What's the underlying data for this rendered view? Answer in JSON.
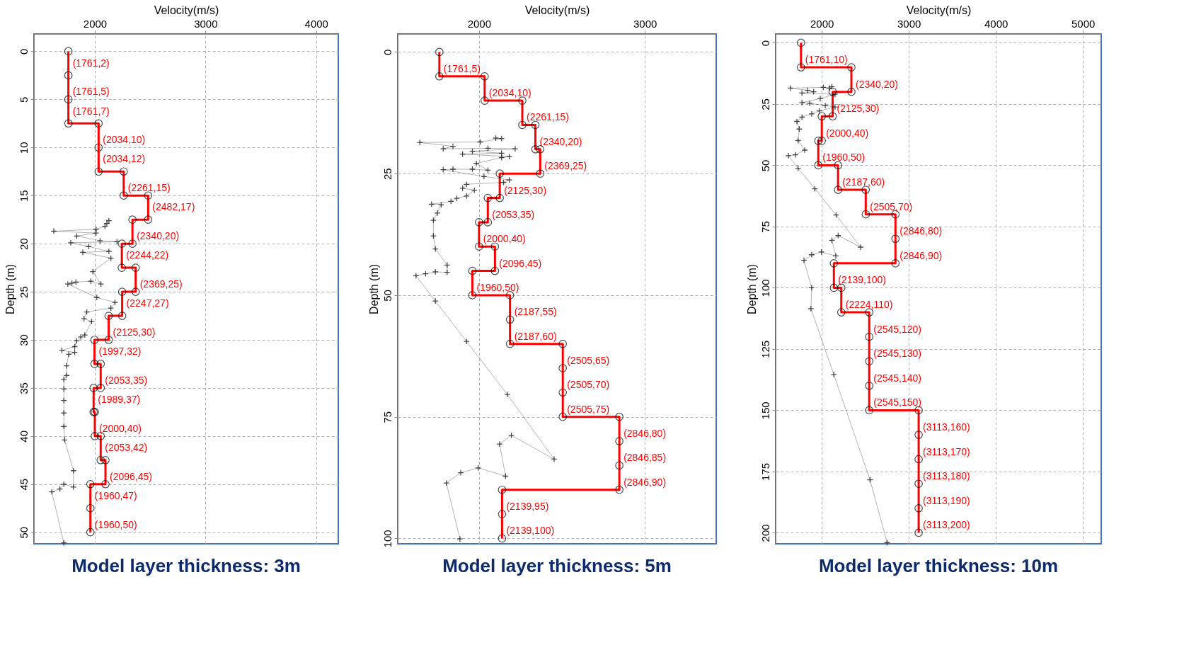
{
  "chart_data": [
    {
      "type": "line",
      "title": "Model layer thickness: 3m",
      "xlabel": "Velocity(m/s)",
      "ylabel": "Depth (m)",
      "xlim": [
        1450,
        4200
      ],
      "xticks": [
        2000,
        3000,
        4000
      ],
      "ylim": [
        51.2,
        -1.8
      ],
      "yticks": [
        0,
        5,
        10,
        15,
        20,
        25,
        30,
        35,
        40,
        45,
        50
      ],
      "grid": true,
      "series": [
        {
          "color": "#ff0000",
          "marker": "circle",
          "x": [
            1761,
            1761,
            1761,
            1761,
            2034,
            2034,
            2034,
            2261,
            2261,
            2482,
            2482,
            2340,
            2340,
            2244,
            2244,
            2369,
            2369,
            2247,
            2247,
            2125,
            2125,
            1997,
            1997,
            2053,
            2053,
            1989,
            1989,
            2000,
            2000,
            2053,
            2053,
            2096,
            2096,
            1960,
            1960,
            1960
          ],
          "values": [
            0,
            2.5,
            5,
            7.5,
            7.5,
            10,
            12.5,
            12.5,
            15,
            15,
            17.5,
            17.5,
            20,
            20,
            22.5,
            22.5,
            25,
            25,
            27.5,
            27.5,
            30,
            30,
            32.5,
            32.5,
            35,
            35,
            37.5,
            37.5,
            40,
            40,
            42.5,
            42.5,
            45,
            45,
            47.5,
            50
          ]
        },
        {
          "color": "#000000",
          "marker": "cross",
          "x": [
            2127,
            2109,
            2091,
            2011,
            1629,
            2011,
            1836,
            2047,
            2200,
            1782,
            1945,
            2127,
            1891,
            2145,
            1982,
            2055,
            1964,
            1829,
            1793,
            1756,
            2018,
            2182,
            2145,
            1927,
            1902,
            1971,
            1909,
            1873,
            1836,
            1818,
            1702,
            1818,
            1764,
            1745,
            1745,
            1720,
            1720,
            1720,
            1720,
            1720,
            1727,
            1807,
            1807,
            1720,
            1684,
            1611,
            1720
          ],
          "values": [
            17.6,
            17.9,
            18.2,
            18.5,
            18.7,
            18.9,
            19.2,
            19.7,
            19.8,
            19.9,
            20.3,
            20.8,
            20.9,
            21.5,
            22.9,
            24.2,
            23.9,
            24.0,
            24.1,
            24.2,
            25.6,
            26.1,
            26.7,
            27.1,
            27.8,
            28.1,
            29.5,
            29.7,
            30.1,
            30.7,
            31.1,
            31.3,
            31.5,
            32.7,
            33.7,
            34.1,
            35.1,
            36.3,
            37.6,
            39.0,
            40.4,
            43.6,
            45.3,
            45.0,
            45.5,
            45.8,
            51.1
          ]
        }
      ],
      "annotations": [
        {
          "text": "(1761,2)",
          "x": 1761,
          "y": 2
        },
        {
          "text": "(1761,5)",
          "x": 1761,
          "y": 5
        },
        {
          "text": "(1761,7)",
          "x": 1761,
          "y": 7
        },
        {
          "text": "(2034,10)",
          "x": 2034,
          "y": 10
        },
        {
          "text": "(2034,12)",
          "x": 2034,
          "y": 12
        },
        {
          "text": "(2261,15)",
          "x": 2261,
          "y": 15
        },
        {
          "text": "(2482,17)",
          "x": 2482,
          "y": 17
        },
        {
          "text": "(2340,20)",
          "x": 2340,
          "y": 20
        },
        {
          "text": "(2244,22)",
          "x": 2244,
          "y": 22
        },
        {
          "text": "(2369,25)",
          "x": 2369,
          "y": 25
        },
        {
          "text": "(2247,27)",
          "x": 2247,
          "y": 27
        },
        {
          "text": "(2125,30)",
          "x": 2125,
          "y": 30
        },
        {
          "text": "(1997,32)",
          "x": 1997,
          "y": 32
        },
        {
          "text": "(2053,35)",
          "x": 2053,
          "y": 35
        },
        {
          "text": "(1989,37)",
          "x": 1989,
          "y": 37
        },
        {
          "text": "(2000,40)",
          "x": 2000,
          "y": 40
        },
        {
          "text": "(2053,42)",
          "x": 2053,
          "y": 42
        },
        {
          "text": "(2096,45)",
          "x": 2096,
          "y": 45
        },
        {
          "text": "(1960,47)",
          "x": 1960,
          "y": 47
        },
        {
          "text": "(1960,50)",
          "x": 1960,
          "y": 50
        }
      ]
    },
    {
      "type": "line",
      "title": "Model layer thickness: 5m",
      "xlabel": "Velocity(m/s)",
      "ylabel": "Depth (m)",
      "xlim": [
        1510,
        3430
      ],
      "xticks": [
        2000,
        3000
      ],
      "ylim": [
        101.1,
        -3.7
      ],
      "yticks": [
        0,
        25,
        50,
        75,
        100
      ],
      "grid": true,
      "series": [
        {
          "color": "#ff0000",
          "marker": "circle",
          "x": [
            1761,
            1761,
            2034,
            2034,
            2261,
            2261,
            2340,
            2340,
            2369,
            2369,
            2125,
            2125,
            2053,
            2053,
            2000,
            2000,
            2096,
            2096,
            1960,
            1960,
            2187,
            2187,
            2187,
            2505,
            2505,
            2505,
            2505,
            2846,
            2846,
            2846,
            2846,
            2139,
            2139,
            2139
          ],
          "values": [
            0,
            5,
            5,
            10,
            10,
            15,
            15,
            20,
            20,
            25,
            25,
            30,
            30,
            35,
            35,
            40,
            40,
            45,
            45,
            50,
            50,
            55,
            60,
            60,
            65,
            70,
            75,
            75,
            80,
            85,
            90,
            90,
            95,
            100
          ]
        },
        {
          "color": "#000000",
          "marker": "cross",
          "x": [
            2101,
            2136,
            2007,
            1643,
            1843,
            1784,
            2054,
            2218,
            1960,
            2136,
            1901,
            2183,
            2136,
            1984,
            2054,
            1960,
            1843,
            1784,
            2030,
            2183,
            2148,
            1925,
            1901,
            1972,
            1925,
            1866,
            1831,
            1714,
            1772,
            1749,
            1725,
            1725,
            1737,
            1808,
            1808,
            1737,
            1678,
            1620,
            1737,
            1925,
            2171,
            2453,
            2195,
            2124,
            2160,
            1995,
            1890,
            1803,
            1885
          ],
          "values": [
            17.7,
            17.8,
            18.5,
            18.6,
            19.4,
            19.9,
            19.8,
            19.9,
            20.4,
            20.8,
            21.0,
            21.5,
            21.7,
            22.9,
            24.3,
            24.1,
            24.1,
            24.2,
            25.6,
            26.3,
            26.8,
            27.2,
            28.0,
            28.4,
            29.6,
            30.1,
            30.7,
            31.3,
            31.4,
            33.1,
            34.6,
            37.8,
            40.5,
            43.8,
            45.3,
            45.2,
            45.6,
            46.0,
            51.2,
            59.5,
            70.4,
            83.7,
            78.8,
            80.6,
            87.2,
            85.5,
            86.5,
            88.6,
            100.1
          ]
        }
      ],
      "annotations": [
        {
          "text": "(1761,5)",
          "x": 1761,
          "y": 5
        },
        {
          "text": "(2034,10)",
          "x": 2034,
          "y": 10
        },
        {
          "text": "(2261,15)",
          "x": 2261,
          "y": 15
        },
        {
          "text": "(2340,20)",
          "x": 2340,
          "y": 20
        },
        {
          "text": "(2369,25)",
          "x": 2369,
          "y": 25
        },
        {
          "text": "(2125,30)",
          "x": 2125,
          "y": 30
        },
        {
          "text": "(2053,35)",
          "x": 2053,
          "y": 35
        },
        {
          "text": "(2000,40)",
          "x": 2000,
          "y": 40
        },
        {
          "text": "(2096,45)",
          "x": 2096,
          "y": 45
        },
        {
          "text": "(1960,50)",
          "x": 1960,
          "y": 50
        },
        {
          "text": "(2187,55)",
          "x": 2187,
          "y": 55
        },
        {
          "text": "(2187,60)",
          "x": 2187,
          "y": 60
        },
        {
          "text": "(2505,65)",
          "x": 2505,
          "y": 65
        },
        {
          "text": "(2505,70)",
          "x": 2505,
          "y": 70
        },
        {
          "text": "(2505,75)",
          "x": 2505,
          "y": 75
        },
        {
          "text": "(2846,80)",
          "x": 2846,
          "y": 80
        },
        {
          "text": "(2846,85)",
          "x": 2846,
          "y": 85
        },
        {
          "text": "(2846,90)",
          "x": 2846,
          "y": 90
        },
        {
          "text": "(2139,95)",
          "x": 2139,
          "y": 95
        },
        {
          "text": "(2139,100)",
          "x": 2139,
          "y": 100
        }
      ]
    },
    {
      "type": "line",
      "title": "Model layer thickness: 10m",
      "xlabel": "Velocity(m/s)",
      "ylabel": "Depth (m)",
      "xlim": [
        1470,
        5210
      ],
      "xticks": [
        2000,
        3000,
        4000,
        5000
      ],
      "ylim": [
        204.5,
        -3.6
      ],
      "yticks": [
        0,
        25,
        50,
        75,
        100,
        125,
        150,
        175,
        200
      ],
      "grid": true,
      "series": [
        {
          "color": "#ff0000",
          "marker": "circle",
          "x": [
            1761,
            1761,
            2340,
            2340,
            2125,
            2125,
            2000,
            2000,
            1960,
            1960,
            2187,
            2187,
            2505,
            2505,
            2846,
            2846,
            2846,
            2139,
            2139,
            2224,
            2224,
            2545,
            2545,
            2545,
            2545,
            2545,
            3113,
            3113,
            3113,
            3113,
            3113,
            3113
          ],
          "values": [
            0,
            10,
            10,
            20,
            20,
            30,
            30,
            40,
            40,
            50,
            50,
            60,
            60,
            70,
            70,
            80,
            90,
            90,
            100,
            100,
            110,
            110,
            120,
            130,
            140,
            150,
            150,
            160,
            170,
            180,
            190,
            200
          ]
        },
        {
          "color": "#000000",
          "marker": "cross",
          "x": [
            2116,
            2085,
            2018,
            1638,
            1839,
            1906,
            1772,
            2152,
            1982,
            1772,
            1862,
            2040,
            2152,
            1973,
            1884,
            1772,
            1714,
            1741,
            1728,
            1804,
            1697,
            1616,
            1728,
            1920,
            2165,
            2446,
            2188,
            2116,
            2161,
            1996,
            1884,
            1795,
            1884,
            1875,
            2138,
            2554,
            2750
          ],
          "values": [
            17.9,
            18.5,
            18.2,
            18.5,
            19.4,
            20.0,
            20.5,
            21.0,
            22.8,
            24.4,
            24.7,
            25.6,
            26.2,
            27.8,
            29.0,
            30.3,
            32.1,
            35.2,
            39.9,
            43.8,
            45.7,
            46.1,
            51.2,
            59.6,
            70.3,
            83.4,
            78.7,
            80.6,
            87.0,
            85.4,
            86.5,
            88.8,
            100,
            108.5,
            135.4,
            178.4,
            204
          ]
        }
      ],
      "annotations": [
        {
          "text": "(1761,10)",
          "x": 1761,
          "y": 10
        },
        {
          "text": "(2340,20)",
          "x": 2340,
          "y": 20
        },
        {
          "text": "(2125,30)",
          "x": 2125,
          "y": 30
        },
        {
          "text": "(2000,40)",
          "x": 2000,
          "y": 40
        },
        {
          "text": "(1960,50)",
          "x": 1960,
          "y": 50
        },
        {
          "text": "(2187,60)",
          "x": 2187,
          "y": 60
        },
        {
          "text": "(2505,70)",
          "x": 2505,
          "y": 70
        },
        {
          "text": "(2846,80)",
          "x": 2846,
          "y": 80
        },
        {
          "text": "(2846,90)",
          "x": 2846,
          "y": 90
        },
        {
          "text": "(2139,100)",
          "x": 2139,
          "y": 100
        },
        {
          "text": "(2224,110)",
          "x": 2224,
          "y": 110
        },
        {
          "text": "(2545,120)",
          "x": 2545,
          "y": 120
        },
        {
          "text": "(2545,130)",
          "x": 2545,
          "y": 130
        },
        {
          "text": "(2545,140)",
          "x": 2545,
          "y": 140
        },
        {
          "text": "(2545,150)",
          "x": 2545,
          "y": 150
        },
        {
          "text": "(3113,160)",
          "x": 3113,
          "y": 160
        },
        {
          "text": "(3113,170)",
          "x": 3113,
          "y": 170
        },
        {
          "text": "(3113,180)",
          "x": 3113,
          "y": 180
        },
        {
          "text": "(3113,190)",
          "x": 3113,
          "y": 190
        },
        {
          "text": "(3113,200)",
          "x": 3113,
          "y": 200
        }
      ]
    }
  ]
}
